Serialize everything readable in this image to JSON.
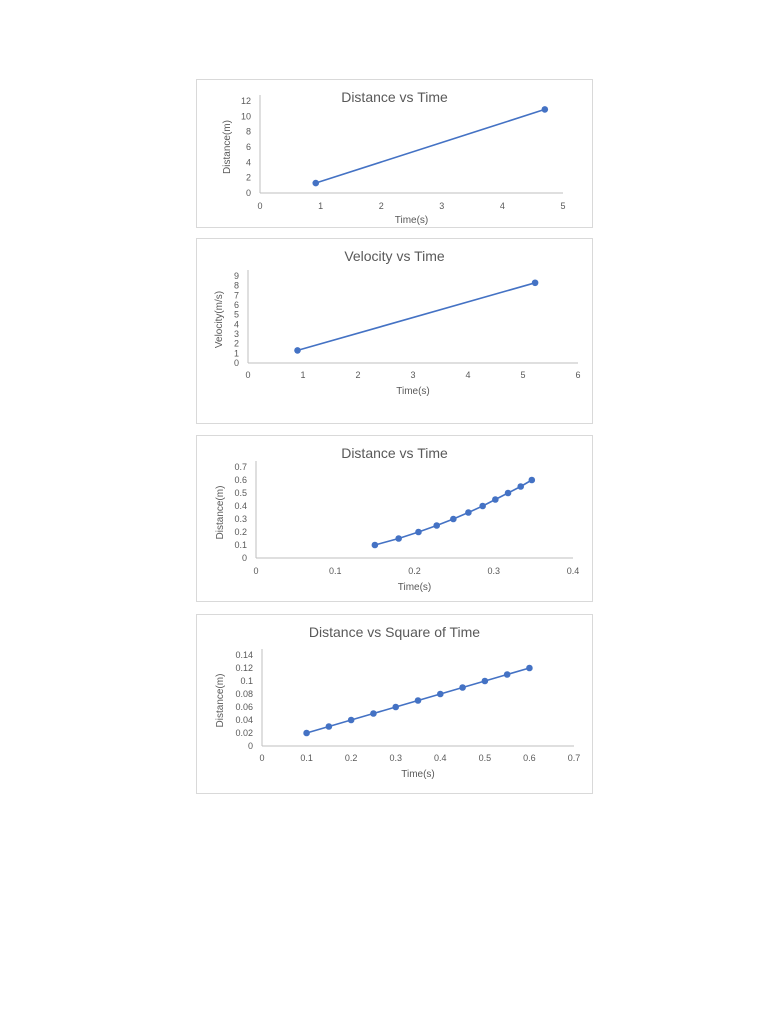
{
  "colors": {
    "series": "#4472c4",
    "axis": "#bfbfbf",
    "text": "#595959",
    "border": "#d9d9d9"
  },
  "chart_data": [
    {
      "type": "line",
      "title": "Distance vs Time",
      "xlabel": "Time(s)",
      "ylabel": "Distance(m)",
      "xlim": [
        0,
        5
      ],
      "ylim": [
        0,
        12
      ],
      "xticks": [
        0,
        1,
        2,
        3,
        4,
        5
      ],
      "yticks": [
        0,
        2,
        4,
        6,
        8,
        10,
        12
      ],
      "grid": false,
      "legend": "none",
      "series": [
        {
          "x": [
            0.92,
            4.7
          ],
          "y": [
            1.3,
            10.9
          ]
        }
      ]
    },
    {
      "type": "line",
      "title": "Velocity vs Time",
      "xlabel": "Time(s)",
      "ylabel": "Velocity(m/s)",
      "xlim": [
        0,
        6
      ],
      "ylim": [
        0,
        9
      ],
      "xticks": [
        0,
        1,
        2,
        3,
        4,
        5,
        6
      ],
      "yticks": [
        0,
        1,
        2,
        3,
        4,
        5,
        6,
        7,
        8,
        9
      ],
      "grid": false,
      "legend": "none",
      "series": [
        {
          "x": [
            0.9,
            5.22
          ],
          "y": [
            1.3,
            8.3
          ]
        }
      ]
    },
    {
      "type": "line",
      "title": "Distance vs Time",
      "xlabel": "Time(s)",
      "ylabel": "Distance(m)",
      "xlim": [
        0,
        0.4
      ],
      "ylim": [
        0,
        0.7
      ],
      "xticks": [
        "0",
        "0.1",
        "0.2",
        "0.3",
        "0.4"
      ],
      "yticks": [
        "0",
        "0.1",
        "0.2",
        "0.3",
        "0.4",
        "0.5",
        "0.6",
        "0.7"
      ],
      "grid": false,
      "legend": "none",
      "series": [
        {
          "x": [
            0.15,
            0.18,
            0.205,
            0.228,
            0.249,
            0.268,
            0.286,
            0.302,
            0.318,
            0.334,
            0.348
          ],
          "y": [
            0.1,
            0.15,
            0.2,
            0.25,
            0.3,
            0.35,
            0.4,
            0.45,
            0.5,
            0.55,
            0.6
          ]
        }
      ]
    },
    {
      "type": "line",
      "title": "Distance vs Square of Time",
      "xlabel": "Time(s)",
      "ylabel": "Distance(m)",
      "xlim": [
        0,
        0.7
      ],
      "ylim": [
        0,
        0.14
      ],
      "xticks": [
        "0",
        "0.1",
        "0.2",
        "0.3",
        "0.4",
        "0.5",
        "0.6",
        "0.7"
      ],
      "yticks": [
        "0",
        "0.02",
        "0.04",
        "0.06",
        "0.08",
        "0.1",
        "0.12",
        "0.14"
      ],
      "grid": false,
      "legend": "none",
      "series": [
        {
          "x": [
            0.1,
            0.15,
            0.2,
            0.25,
            0.3,
            0.35,
            0.4,
            0.45,
            0.5,
            0.55,
            0.6
          ],
          "y": [
            0.02,
            0.03,
            0.04,
            0.05,
            0.06,
            0.07,
            0.08,
            0.09,
            0.1,
            0.11,
            0.12
          ]
        }
      ]
    }
  ]
}
